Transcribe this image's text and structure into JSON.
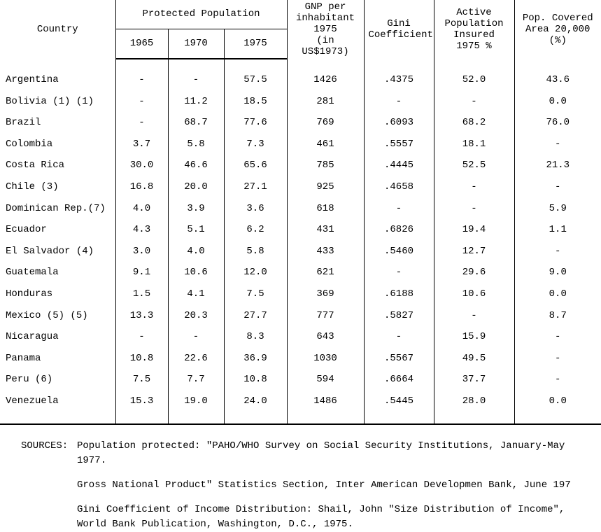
{
  "table": {
    "header": {
      "country": "Country",
      "protected_population": "Protected Population",
      "years": {
        "y1965": "1965",
        "y1970": "1970",
        "y1975": "1975"
      },
      "gnp_line1": "GNP per",
      "gnp_line2": "inhabitant",
      "gnp_line3": "1975",
      "gnp_line4": "(in US$1973)",
      "gini_line1": "Gini",
      "gini_line2": "Coefficient",
      "active_line1": "Active",
      "active_line2": "Population",
      "active_line3": "Insured",
      "active_line4": "1975 %",
      "pop_line1": "Pop. Covered",
      "pop_line2": "Area 20,000",
      "pop_line3": "(%)"
    },
    "rows": [
      {
        "country": "Argentina",
        "y1965": "-",
        "y1970": "-",
        "y1975": "57.5",
        "gnp": "1426",
        "gini": ".4375",
        "active": "52.0",
        "pop": "43.6"
      },
      {
        "country": "Bolivia (1) (1)",
        "y1965": "-",
        "y1970": "11.2",
        "y1975": "18.5",
        "gnp": "281",
        "gini": "-",
        "active": "-",
        "pop": "0.0"
      },
      {
        "country": "Brazil",
        "y1965": "-",
        "y1970": "68.7",
        "y1975": "77.6",
        "gnp": "769",
        "gini": ".6093",
        "active": "68.2",
        "pop": "76.0"
      },
      {
        "country": "Colombia",
        "y1965": "3.7",
        "y1970": "5.8",
        "y1975": "7.3",
        "gnp": "461",
        "gini": ".5557",
        "active": "18.1",
        "pop": "-"
      },
      {
        "country": "Costa Rica",
        "y1965": "30.0",
        "y1970": "46.6",
        "y1975": "65.6",
        "gnp": "785",
        "gini": ".4445",
        "active": "52.5",
        "pop": "21.3"
      },
      {
        "country": "Chile (3)",
        "y1965": "16.8",
        "y1970": "20.0",
        "y1975": "27.1",
        "gnp": "925",
        "gini": ".4658",
        "active": "-",
        "pop": "-"
      },
      {
        "country": "Dominican Rep.(7)",
        "y1965": "4.0",
        "y1970": "3.9",
        "y1975": "3.6",
        "gnp": "618",
        "gini": "-",
        "active": "-",
        "pop": "5.9"
      },
      {
        "country": "Ecuador",
        "y1965": "4.3",
        "y1970": "5.1",
        "y1975": "6.2",
        "gnp": "431",
        "gini": ".6826",
        "active": "19.4",
        "pop": "1.1"
      },
      {
        "country": "El Salvador  (4)",
        "y1965": "3.0",
        "y1970": "4.0",
        "y1975": "5.8",
        "gnp": "433",
        "gini": ".5460",
        "active": "12.7",
        "pop": "-"
      },
      {
        "country": "Guatemala",
        "y1965": "9.1",
        "y1970": "10.6",
        "y1975": "12.0",
        "gnp": "621",
        "gini": "-",
        "active": "29.6",
        "pop": "9.0"
      },
      {
        "country": "Honduras",
        "y1965": "1.5",
        "y1970": "4.1",
        "y1975": "7.5",
        "gnp": "369",
        "gini": ".6188",
        "active": "10.6",
        "pop": "0.0"
      },
      {
        "country": "Mexico (5) (5)",
        "y1965": "13.3",
        "y1970": "20.3",
        "y1975": "27.7",
        "gnp": "777",
        "gini": ".5827",
        "active": "-",
        "pop": "8.7"
      },
      {
        "country": "Nicaragua",
        "y1965": "-",
        "y1970": "-",
        "y1975": "8.3",
        "gnp": "643",
        "gini": "-",
        "active": "15.9",
        "pop": "-"
      },
      {
        "country": "Panama",
        "y1965": "10.8",
        "y1970": "22.6",
        "y1975": "36.9",
        "gnp": "1030",
        "gini": ".5567",
        "active": "49.5",
        "pop": "-"
      },
      {
        "country": "Peru   (6)",
        "y1965": "7.5",
        "y1970": "7.7",
        "y1975": "10.8",
        "gnp": "594",
        "gini": ".6664",
        "active": "37.7",
        "pop": "-"
      },
      {
        "country": "Venezuela",
        "y1965": "15.3",
        "y1970": "19.0",
        "y1975": "24.0",
        "gnp": "1486",
        "gini": ".5445",
        "active": "28.0",
        "pop": "0.0"
      }
    ]
  },
  "sources": {
    "label": "SOURCES:",
    "s1": "Population protected: \"PAHO/WHO Survey on Social Security Institutions, January-May 1977.",
    "s2": "Gross National Product\" Statistics Section, Inter American Developmen Bank, June 197",
    "s3": "Gini Coefficient of Income Distribution:  Shail, John \"Size Distribution of Income\", World Bank Publication, Washington, D.C., 1975."
  }
}
